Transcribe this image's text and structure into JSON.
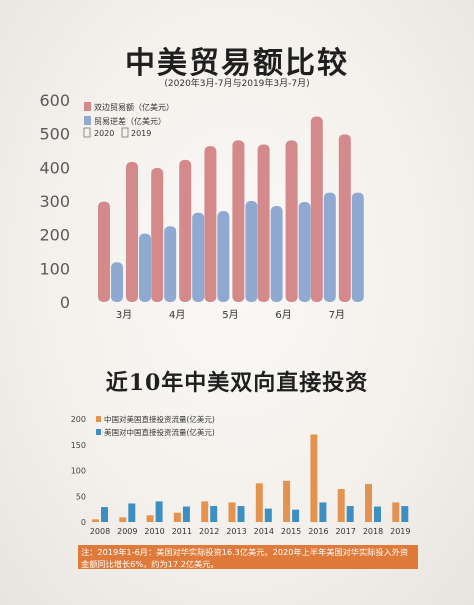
{
  "title_main": "中美贸易额比较",
  "subtitle_main": "(2020年3月-7月与2019年3月-7月)",
  "title_second": "近10年中美双向直接投资",
  "note": "注：2019年1-6月：美国对华实际投资16.3亿美元。2020年上半年美国对华实际投入外资金额同比增长6%，约为17.2亿美元。",
  "colors": {
    "trade": "#d4898b",
    "deficit": "#8fa9d1",
    "cn_to_us": "#e3924f",
    "us_to_cn": "#3d8fc2",
    "axis_text": "#555555"
  },
  "chart_data": [
    {
      "type": "bar",
      "categories": [
        "3月",
        "4月",
        "5月",
        "6月",
        "7月"
      ],
      "series": [
        {
          "name": "双边贸易额（亿美元）",
          "metric": "trade",
          "year": "2020",
          "values": [
            298,
            398,
            463,
            468,
            551
          ]
        },
        {
          "name": "双边贸易额（亿美元）",
          "metric": "trade",
          "year": "2019",
          "values": [
            416,
            422,
            480,
            480,
            498
          ]
        },
        {
          "name": "贸易逆差（亿美元）",
          "metric": "deficit",
          "year": "2020",
          "values": [
            118,
            225,
            270,
            285,
            325
          ]
        },
        {
          "name": "贸易逆差（亿美元）",
          "metric": "deficit",
          "year": "2019",
          "values": [
            203,
            265,
            300,
            297,
            325
          ]
        }
      ],
      "legend": [
        {
          "label": "双边贸易额（亿美元）",
          "key": "trade"
        },
        {
          "label": "贸易逆差（亿美元）",
          "key": "deficit"
        },
        {
          "label": "2020",
          "key": "y2020"
        },
        {
          "label": "2019",
          "key": "y2019"
        }
      ],
      "yticks": [
        0,
        100,
        200,
        300,
        400,
        500,
        600
      ],
      "ylim": [
        0,
        600
      ],
      "xlabel": "",
      "ylabel": "",
      "grid": false,
      "legend_position": "top-left"
    },
    {
      "type": "bar",
      "categories": [
        "2008",
        "2009",
        "2010",
        "2011",
        "2012",
        "2013",
        "2014",
        "2015",
        "2016",
        "2017",
        "2018",
        "2019"
      ],
      "series": [
        {
          "name": "中国对美国直接投资流量(亿美元)",
          "key": "cn_to_us",
          "values": [
            5,
            9,
            13,
            18,
            40,
            38,
            75,
            80,
            170,
            64,
            74,
            38
          ]
        },
        {
          "name": "美国对中国直接投资流量(亿美元)",
          "key": "us_to_cn",
          "values": [
            29,
            36,
            40,
            30,
            31,
            31,
            26,
            24,
            38,
            31,
            30,
            31
          ]
        }
      ],
      "yticks": [
        0,
        50,
        100,
        150,
        200
      ],
      "ylim": [
        0,
        200
      ],
      "xlabel": "",
      "ylabel": "",
      "grid": false,
      "legend_position": "top-left"
    }
  ]
}
